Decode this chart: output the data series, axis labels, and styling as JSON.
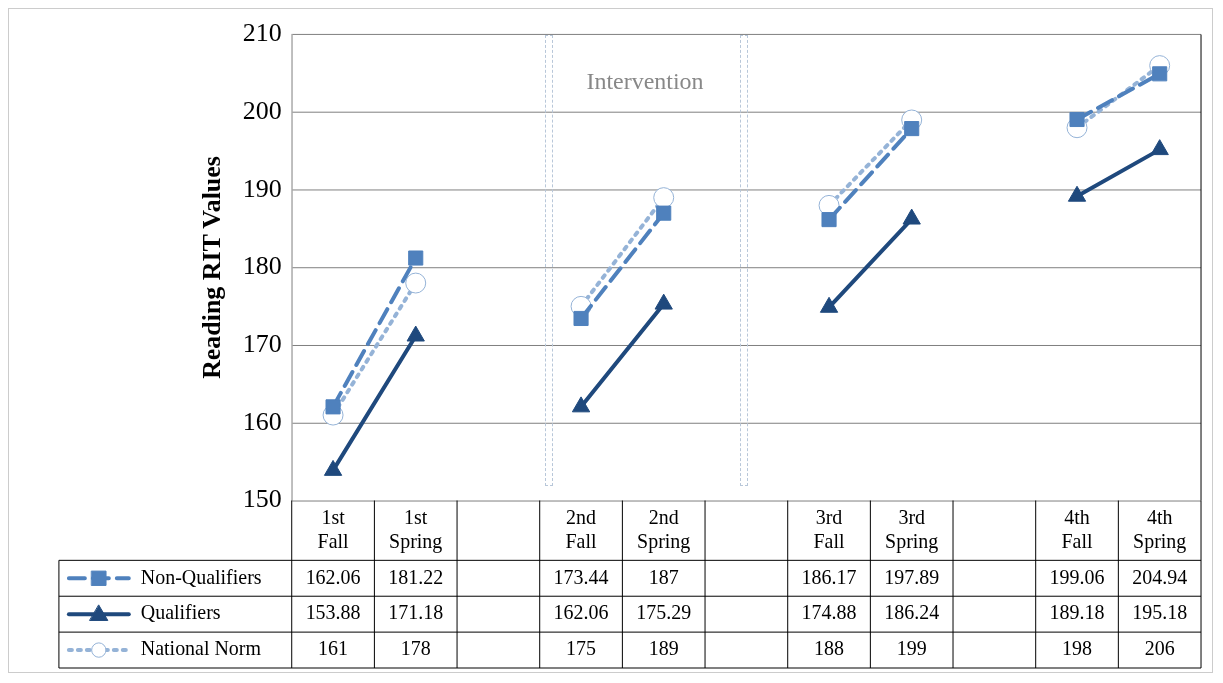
{
  "chart_data": {
    "type": "line",
    "ylabel": "Reading RIT Values",
    "categories": [
      "1st Fall",
      "1st Spring",
      null,
      "2nd Fall",
      "2nd Spring",
      null,
      "3rd Fall",
      "3rd Spring",
      null,
      "4th Fall",
      "4th Spring"
    ],
    "series": [
      {
        "name": "Non-Qualifiers",
        "color": "#4f81bd",
        "marker": "square",
        "line_style": "dashed",
        "values": [
          162.06,
          181.22,
          null,
          173.44,
          187,
          null,
          186.17,
          197.89,
          null,
          199.06,
          204.94
        ]
      },
      {
        "name": "Qualifiers",
        "color": "#1f497d",
        "marker": "triangle",
        "line_style": "solid",
        "values": [
          153.88,
          171.18,
          null,
          162.06,
          175.29,
          null,
          174.88,
          186.24,
          null,
          189.18,
          195.18
        ]
      },
      {
        "name": "National Norm",
        "color": "#95b3d7",
        "marker": "circle",
        "line_style": "dotted",
        "values": [
          161,
          178,
          null,
          175,
          189,
          null,
          188,
          199,
          null,
          198,
          206
        ]
      }
    ],
    "ylim": [
      150,
      210
    ],
    "yticks": [
      150,
      160,
      170,
      180,
      190,
      200,
      210
    ],
    "grid": "y",
    "legend": "bottom left",
    "data_labels": true,
    "annotations": [
      "Intervention"
    ]
  }
}
